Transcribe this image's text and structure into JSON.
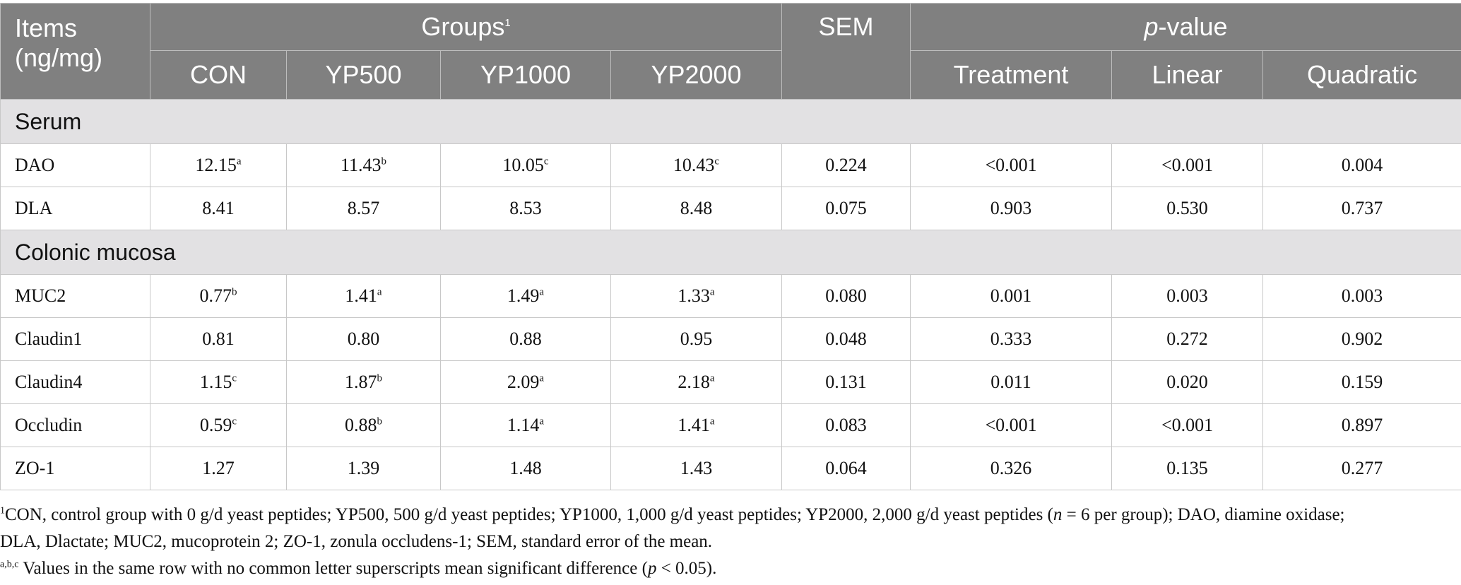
{
  "header": {
    "items_line1": "Items",
    "items_line2": "(ng/mg)",
    "groups": "Groups",
    "groups_sup": "1",
    "sem": "SEM",
    "pvalue_italic": "p",
    "pvalue_rest": "-value",
    "cols": [
      "CON",
      "YP500",
      "YP1000",
      "YP2000"
    ],
    "pcols": [
      "Treatment",
      "Linear",
      "Quadratic"
    ]
  },
  "sections": [
    {
      "title": "Serum",
      "rows": [
        {
          "label": "DAO",
          "values": [
            {
              "v": "12.15",
              "s": "a"
            },
            {
              "v": "11.43",
              "s": "b"
            },
            {
              "v": "10.05",
              "s": "c"
            },
            {
              "v": "10.43",
              "s": "c"
            }
          ],
          "sem": "0.224",
          "p": [
            "<0.001",
            "<0.001",
            "0.004"
          ]
        },
        {
          "label": "DLA",
          "values": [
            {
              "v": "8.41",
              "s": ""
            },
            {
              "v": "8.57",
              "s": ""
            },
            {
              "v": "8.53",
              "s": ""
            },
            {
              "v": "8.48",
              "s": ""
            }
          ],
          "sem": "0.075",
          "p": [
            "0.903",
            "0.530",
            "0.737"
          ]
        }
      ]
    },
    {
      "title": "Colonic mucosa",
      "rows": [
        {
          "label": "MUC2",
          "values": [
            {
              "v": "0.77",
              "s": "b"
            },
            {
              "v": "1.41",
              "s": "a"
            },
            {
              "v": "1.49",
              "s": "a"
            },
            {
              "v": "1.33",
              "s": "a"
            }
          ],
          "sem": "0.080",
          "p": [
            "0.001",
            "0.003",
            "0.003"
          ]
        },
        {
          "label": "Claudin1",
          "values": [
            {
              "v": "0.81",
              "s": ""
            },
            {
              "v": "0.80",
              "s": ""
            },
            {
              "v": "0.88",
              "s": ""
            },
            {
              "v": "0.95",
              "s": ""
            }
          ],
          "sem": "0.048",
          "p": [
            "0.333",
            "0.272",
            "0.902"
          ]
        },
        {
          "label": "Claudin4",
          "values": [
            {
              "v": "1.15",
              "s": "c"
            },
            {
              "v": "1.87",
              "s": "b"
            },
            {
              "v": "2.09",
              "s": "a"
            },
            {
              "v": "2.18",
              "s": "a"
            }
          ],
          "sem": "0.131",
          "p": [
            "0.011",
            "0.020",
            "0.159"
          ]
        },
        {
          "label": "Occludin",
          "values": [
            {
              "v": "0.59",
              "s": "c"
            },
            {
              "v": "0.88",
              "s": "b"
            },
            {
              "v": "1.14",
              "s": "a"
            },
            {
              "v": "1.41",
              "s": "a"
            }
          ],
          "sem": "0.083",
          "p": [
            "<0.001",
            "<0.001",
            "0.897"
          ]
        },
        {
          "label": "ZO-1",
          "values": [
            {
              "v": "1.27",
              "s": ""
            },
            {
              "v": "1.39",
              "s": ""
            },
            {
              "v": "1.48",
              "s": ""
            },
            {
              "v": "1.43",
              "s": ""
            }
          ],
          "sem": "0.064",
          "p": [
            "0.326",
            "0.135",
            "0.277"
          ]
        }
      ]
    }
  ],
  "footnotes": {
    "fn1_sup": "1",
    "fn1_a": "CON, control group with 0 g/d yeast peptides; YP500, 500 g/d yeast peptides; YP1000, 1,000 g/d yeast peptides; YP2000, 2,000 g/d yeast peptides (",
    "fn1_n": "n",
    "fn1_b": " = 6 per group); DAO, diamine oxidase;",
    "fn1_c": "DLA, Dlactate; MUC2, mucoprotein 2; ZO-1, zonula occludens-1; SEM, standard error of the mean.",
    "fn2_sup": "a,b,c",
    "fn2_a": " Values in the same row with no common letter superscripts mean significant difference (",
    "fn2_p": "p",
    "fn2_b": " < 0.05)."
  }
}
